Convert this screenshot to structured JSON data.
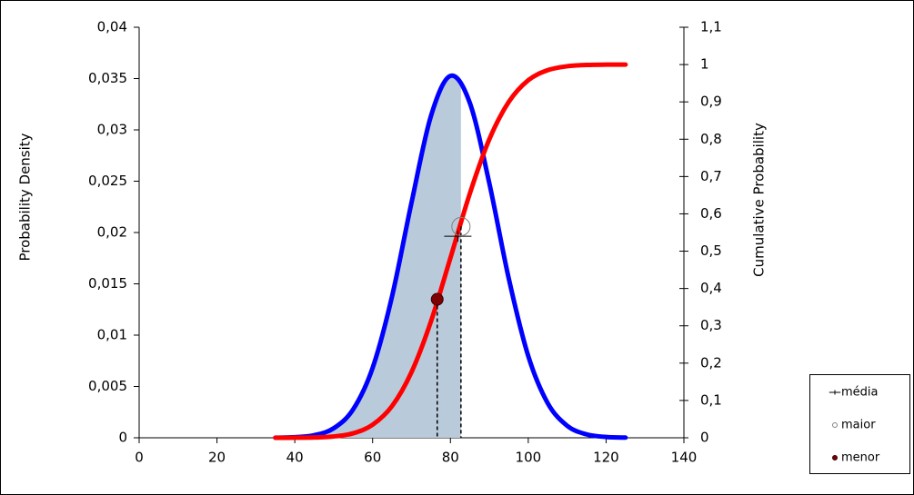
{
  "chart_data": {
    "type": "line",
    "ylabel": "Probability Density",
    "y2label": "Cumulative Probability",
    "x": [
      35,
      40,
      45,
      50,
      55,
      60,
      65,
      70,
      75,
      80,
      85,
      90,
      95,
      100,
      105,
      110,
      115,
      120,
      125
    ],
    "series": [
      {
        "color": "#0000ff",
        "axis": "y",
        "shaded_until_point": 1,
        "shade_color": "#b9cadb",
        "values": [
          1e-05,
          6e-05,
          0.00025,
          0.00093,
          0.00277,
          0.00681,
          0.01379,
          0.02292,
          0.03136,
          0.03526,
          0.03261,
          0.02479,
          0.0155,
          0.00796,
          0.00337,
          0.00117,
          0.00033,
          8e-05,
          2e-05
        ]
      },
      {
        "color": "#ff0000",
        "axis": "y2",
        "values": [
          0,
          0.0002,
          0.0008,
          0.0035,
          0.012,
          0.035,
          0.085,
          0.176,
          0.312,
          0.482,
          0.655,
          0.8,
          0.9,
          0.958,
          0.985,
          0.9955,
          0.9989,
          0.9998,
          1.0
        ]
      }
    ],
    "points": [
      {
        "name": "média",
        "x": 81.9,
        "y": 0.54,
        "axis": "y2",
        "symbol": "plus",
        "color": "#000000",
        "dropline": false
      },
      {
        "name": "maior",
        "x": 82.7,
        "y": 0.566,
        "axis": "y2",
        "symbol": "open-circle",
        "color": "#808080",
        "dropline": true
      },
      {
        "name": "menor",
        "x": 76.6,
        "y": 0.371,
        "axis": "y2",
        "symbol": "filled-circle",
        "color": "#7f0000",
        "dropline": true
      }
    ],
    "xlim": [
      0,
      140
    ],
    "xticks": [
      0,
      20,
      40,
      60,
      80,
      100,
      120,
      140
    ],
    "ylim": [
      0,
      0.04
    ],
    "yticks": [
      0,
      {
        "value": 0.005,
        "label": "0,005"
      },
      {
        "value": 0.01,
        "label": "0,01"
      },
      {
        "value": 0.015,
        "label": "0,015"
      },
      {
        "value": 0.02,
        "label": "0,02"
      },
      {
        "value": 0.025,
        "label": "0,025"
      },
      {
        "value": 0.03,
        "label": "0,03"
      },
      {
        "value": 0.035,
        "label": "0,035"
      },
      {
        "value": 0.04,
        "label": "0,04"
      }
    ],
    "y2lim": [
      0,
      1.1
    ],
    "y2ticks": [
      0,
      {
        "value": 0.1,
        "label": "0,1"
      },
      {
        "value": 0.2,
        "label": "0,2"
      },
      {
        "value": 0.3,
        "label": "0,3"
      },
      {
        "value": 0.4,
        "label": "0,4"
      },
      {
        "value": 0.5,
        "label": "0,5"
      },
      {
        "value": 0.6,
        "label": "0,6"
      },
      {
        "value": 0.7,
        "label": "0,7"
      },
      {
        "value": 0.8,
        "label": "0,8"
      },
      {
        "value": 0.9,
        "label": "0,9"
      },
      1,
      {
        "value": 1.1,
        "label": "1,1"
      }
    ],
    "grid": false,
    "legend": "bottom-right"
  }
}
